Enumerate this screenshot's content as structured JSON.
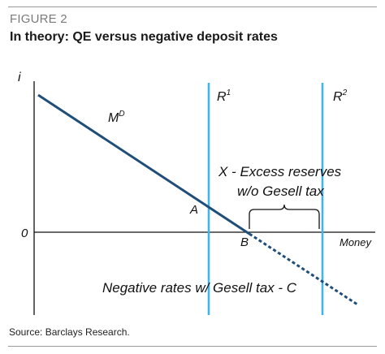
{
  "figure_label": "FIGURE 2",
  "title": "In theory: QE versus negative deposit rates",
  "source": "Source: Barclays Research.",
  "diagram": {
    "y_axis_label": "i",
    "origin_label": "0",
    "x_axis_label": "Money",
    "demand_curve_label": "M",
    "demand_curve_superscript": "D",
    "reserve_1_label": "R",
    "reserve_1_superscript": "1",
    "reserve_2_label": "R",
    "reserve_2_superscript": "2",
    "point_a_label": "A",
    "point_b_label": "B",
    "excess_reserves_line1": "X - Excess reserves",
    "excess_reserves_line2": "w/o Gesell tax",
    "negative_rates_label": "Negative rates w/ Gesell tax - C",
    "colors": {
      "demand_curve": "#1f4e79",
      "reserve_lines": "#41b6e6",
      "axes": "#111111"
    }
  }
}
